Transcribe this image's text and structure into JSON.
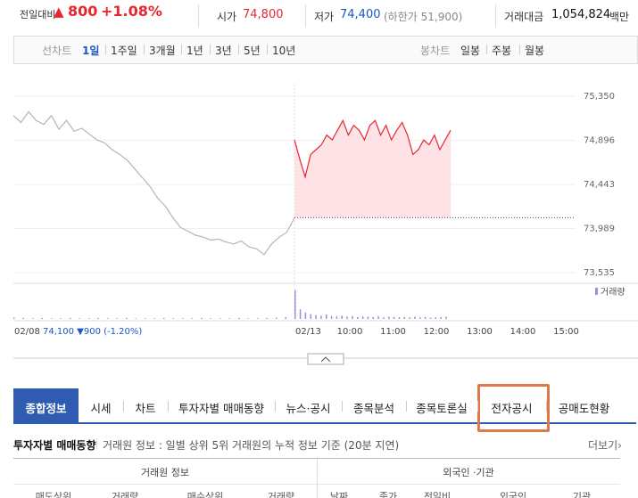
{
  "summary": {
    "change_label": "전일대비",
    "change_arrow": "▲",
    "change": "800",
    "change_pct": "+1.08%",
    "open_label": "시가",
    "open": "74,800",
    "low_label": "저가",
    "low": "74,400",
    "limit_down": "(하한가 51,900)",
    "amount_label": "거래대금",
    "amount": "1,054,824",
    "amount_unit": "백만"
  },
  "period_tabs": {
    "line_label": "선차트",
    "items": [
      "1일",
      "1주일",
      "3개월",
      "1년",
      "3년",
      "5년",
      "10년"
    ],
    "candle_label": "봉차트",
    "candle_items": [
      "일봉",
      "주봉",
      "월봉"
    ]
  },
  "chart_data": {
    "type": "line",
    "ylim": [
      73535,
      75350
    ],
    "yticks": [
      {
        "value": 73535,
        "label": "73,535"
      },
      {
        "value": 73989,
        "label": "73,989"
      },
      {
        "value": 74443,
        "label": "74,443"
      },
      {
        "value": 74896,
        "label": "74,896"
      },
      {
        "value": 75350,
        "label": "75,350"
      }
    ],
    "baseline": 74100,
    "series": [
      {
        "name": "02/08",
        "color": "#b5b5b5",
        "values": [
          75150,
          75080,
          75190,
          75100,
          75060,
          75150,
          75010,
          75100,
          74990,
          75020,
          74960,
          74900,
          74870,
          74800,
          74750,
          74690,
          74600,
          74510,
          74420,
          74300,
          74220,
          74100,
          74000,
          73960,
          73920,
          73900,
          73870,
          73880,
          73850,
          73830,
          73860,
          73800,
          73780,
          73720,
          73830,
          73900,
          73950,
          74100
        ]
      },
      {
        "name": "02/13",
        "color": "#e8262f",
        "values": [
          74900,
          74700,
          74520,
          74750,
          74800,
          74850,
          74950,
          74900,
          75000,
          75100,
          74950,
          75050,
          75000,
          74900,
          75050,
          75100,
          74950,
          75050,
          74900,
          75000,
          75080,
          74950,
          74750,
          74800,
          74900,
          74850,
          74950,
          74800,
          74900,
          75000
        ]
      }
    ],
    "volume": {
      "label": "거래량",
      "color": "#9b8fd6",
      "ylim": [
        0,
        100
      ],
      "values": [
        4,
        3,
        2,
        3,
        2,
        2,
        3,
        2,
        2,
        3,
        2,
        2,
        3,
        2,
        2,
        2,
        3,
        2,
        2,
        2,
        3,
        2,
        2,
        2,
        3,
        2,
        2,
        3,
        4,
        6,
        90,
        30,
        20,
        15,
        12,
        10,
        14,
        9,
        8,
        10,
        7,
        9,
        6,
        8,
        7,
        6,
        8,
        5,
        7,
        6,
        5,
        6,
        5,
        7,
        5,
        6,
        4,
        5,
        6,
        7
      ]
    },
    "prev_summary": "74,100 ▼900 (-1.20%)",
    "times": [
      "10:00",
      "11:00",
      "12:00",
      "13:00",
      "14:00",
      "15:00"
    ]
  },
  "nav_tabs": {
    "items": [
      "종합정보",
      "시세",
      "차트",
      "투자자별 매매동향",
      "뉴스·공시",
      "종목분석",
      "종목토론실",
      "전자공시",
      "공매도현황"
    ]
  },
  "section": {
    "title": "투자자별 매매동향",
    "desc": "거래원 정보 : 일별 상위 5위 거래원의 누적 정보 기준 (20분 지연)",
    "more": "더보기›"
  },
  "table": {
    "groups": [
      "거래원 정보",
      "외국인 ·기관"
    ],
    "columns": [
      "매도상위",
      "거래량",
      "매수상위",
      "거래량",
      "날짜",
      "종가",
      "전일비",
      "외국인",
      "기관"
    ]
  }
}
